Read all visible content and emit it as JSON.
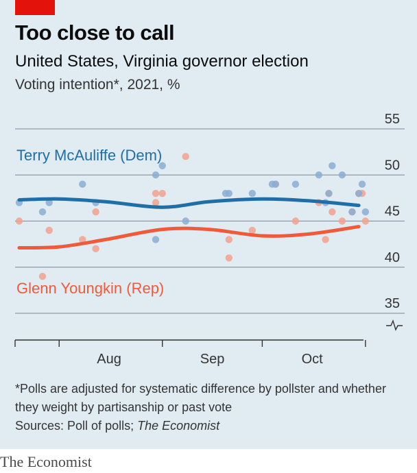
{
  "header": {
    "title": "Too close to call",
    "subtitle": "United States, Virginia governor election",
    "unit_line": "Voting intention*, 2021, %"
  },
  "footer": {
    "footnote": "*Polls are adjusted for systematic difference by pollster and whether they weight by partisanship or past vote",
    "sources_prefix": "Sources: Poll of polls; ",
    "sources_italic": "The Economist",
    "brand": "The Economist"
  },
  "colors": {
    "background": "#e1ebf2",
    "dem": "#1f6ea6",
    "rep": "#ef5b3a",
    "dem_dot": "#8aaed3",
    "rep_dot": "#f2a28e",
    "grid": "#8c9aa6",
    "brand_red": "#e3120b"
  },
  "chart_data": {
    "type": "line",
    "title": "Too close to call",
    "x_axis": {
      "type": "time",
      "start": "2021-07-20",
      "end": "2021-10-31",
      "tick_labels": [
        "Aug",
        "Sep",
        "Oct"
      ]
    },
    "y_axis": {
      "ticks": [
        35,
        40,
        45,
        50,
        55
      ],
      "ylim": [
        33,
        56
      ],
      "broken_axis": true,
      "side": "right"
    },
    "grid": true,
    "series": [
      {
        "name": "Terry McAuliffe (Dem)",
        "color": "#1f6ea6",
        "trend": [
          [
            "2021-07-20",
            47.3
          ],
          [
            "2021-08-01",
            47.4
          ],
          [
            "2021-08-15",
            47.1
          ],
          [
            "2021-09-01",
            46.5
          ],
          [
            "2021-09-15",
            47.1
          ],
          [
            "2021-10-01",
            47.4
          ],
          [
            "2021-10-15",
            47.2
          ],
          [
            "2021-10-30",
            46.7
          ]
        ],
        "polls": [
          [
            "2021-07-20",
            47
          ],
          [
            "2021-07-27",
            46
          ],
          [
            "2021-07-29",
            47
          ],
          [
            "2021-08-08",
            49
          ],
          [
            "2021-08-12",
            47
          ],
          [
            "2021-08-30",
            43
          ],
          [
            "2021-08-30",
            50
          ],
          [
            "2021-09-01",
            51
          ],
          [
            "2021-09-08",
            45
          ],
          [
            "2021-09-20",
            48
          ],
          [
            "2021-09-21",
            48
          ],
          [
            "2021-09-28",
            48
          ],
          [
            "2021-10-04",
            49
          ],
          [
            "2021-10-05",
            49
          ],
          [
            "2021-10-11",
            49
          ],
          [
            "2021-10-18",
            50
          ],
          [
            "2021-10-20",
            47
          ],
          [
            "2021-10-21",
            48
          ],
          [
            "2021-10-22",
            51
          ],
          [
            "2021-10-25",
            50
          ],
          [
            "2021-10-28",
            46
          ],
          [
            "2021-10-30",
            48
          ],
          [
            "2021-10-31",
            49
          ],
          [
            "2021-11-01",
            46
          ]
        ]
      },
      {
        "name": "Glenn Youngkin (Rep)",
        "color": "#ef5b3a",
        "trend": [
          [
            "2021-07-20",
            42.1
          ],
          [
            "2021-08-01",
            42.2
          ],
          [
            "2021-08-15",
            43.0
          ],
          [
            "2021-09-01",
            44.1
          ],
          [
            "2021-09-15",
            44.1
          ],
          [
            "2021-10-01",
            43.4
          ],
          [
            "2021-10-15",
            43.6
          ],
          [
            "2021-10-30",
            44.4
          ]
        ],
        "polls": [
          [
            "2021-07-20",
            45
          ],
          [
            "2021-07-27",
            39
          ],
          [
            "2021-07-29",
            44
          ],
          [
            "2021-08-08",
            43
          ],
          [
            "2021-08-12",
            42
          ],
          [
            "2021-08-12",
            46
          ],
          [
            "2021-08-30",
            47
          ],
          [
            "2021-08-30",
            48
          ],
          [
            "2021-09-01",
            48
          ],
          [
            "2021-09-08",
            52
          ],
          [
            "2021-09-21",
            43
          ],
          [
            "2021-09-21",
            41
          ],
          [
            "2021-09-28",
            44
          ],
          [
            "2021-10-05",
            49
          ],
          [
            "2021-10-11",
            45
          ],
          [
            "2021-10-18",
            47
          ],
          [
            "2021-10-20",
            43
          ],
          [
            "2021-10-21",
            48
          ],
          [
            "2021-10-22",
            46
          ],
          [
            "2021-10-25",
            45
          ],
          [
            "2021-10-28",
            46
          ],
          [
            "2021-10-30",
            48
          ],
          [
            "2021-10-31",
            48
          ],
          [
            "2021-11-01",
            45
          ]
        ]
      }
    ]
  }
}
